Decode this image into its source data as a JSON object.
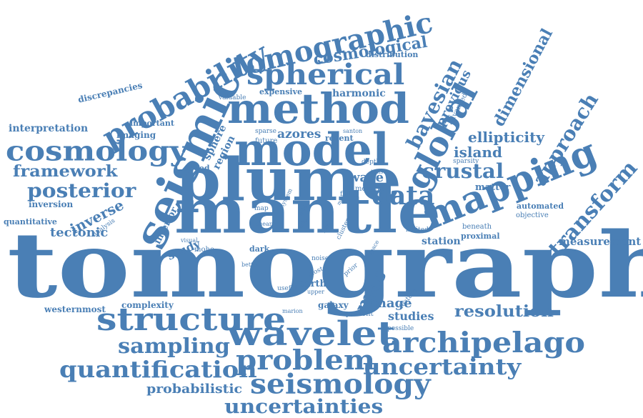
{
  "cloud": {
    "color": "#4a7fb5",
    "words": [
      "tomography",
      "mantle",
      "plume",
      "model",
      "method",
      "seismic",
      "wavelet",
      "structure",
      "mapping",
      "archipelago",
      "spherical",
      "tomographic",
      "probability",
      "global",
      "cosmology",
      "data",
      "problem",
      "seismology",
      "quantification",
      "uncertainty",
      "uncertainties",
      "crustal",
      "transform",
      "approach",
      "bayesian",
      "sampling",
      "posterior",
      "framework",
      "dimensional",
      "resolution",
      "cosmological",
      "ellipticity",
      "island",
      "mas",
      "probabilistic",
      "inverse",
      "harmonic",
      "tectonic",
      "measurement",
      "interpretation",
      "previous",
      "image",
      "studies",
      "wave",
      "westernmost",
      "complexity",
      "study",
      "interior",
      "discrepancies",
      "quantitative",
      "automated",
      "distribution",
      "sphere",
      "region",
      "expensive",
      "imaging",
      "important",
      "azores",
      "recent",
      "inversion",
      "matter",
      "speed",
      "earth",
      "galaxy",
      "valuable",
      "advanced",
      "sparsity",
      "objective",
      "proximal",
      "station",
      "limited",
      "beneath",
      "present",
      "possible",
      "feature",
      "future",
      "sparse",
      "depth",
      "santon",
      "tensor",
      "moment",
      "full",
      "system",
      "map",
      "shear",
      "dark",
      "moho",
      "visual",
      "better",
      "noise",
      "useful",
      "most",
      "upper",
      "marion",
      "prior",
      "space",
      "cluster",
      "analysis",
      "field",
      "more",
      "local",
      "help"
    ]
  }
}
